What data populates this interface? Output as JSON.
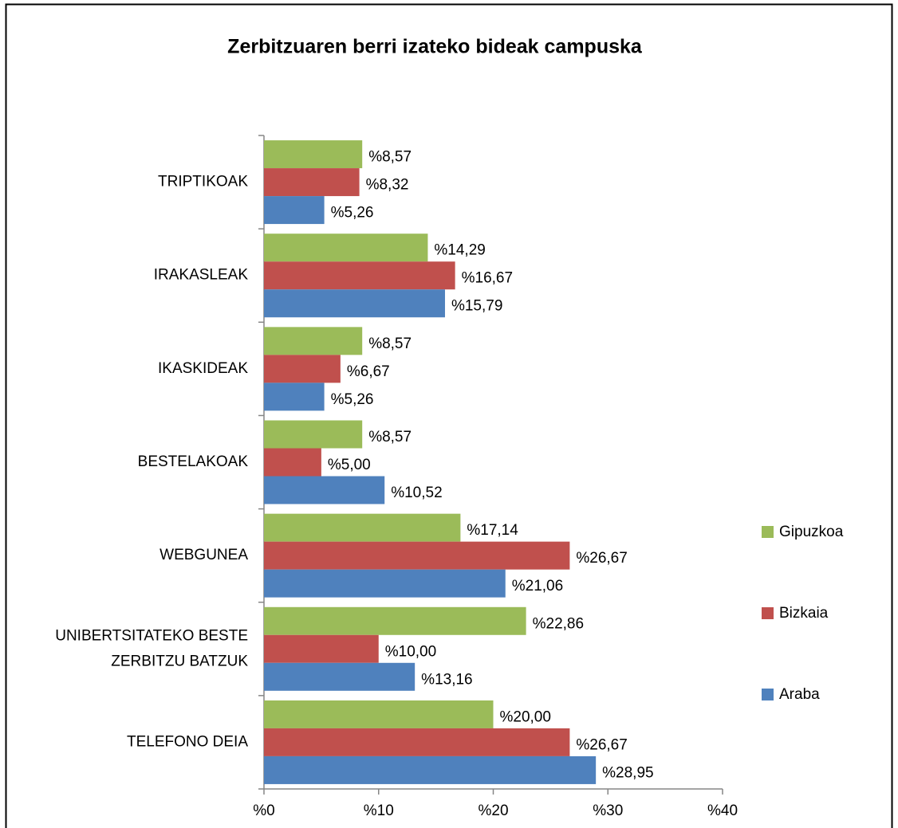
{
  "chart_data": {
    "type": "hbar",
    "title": "Zerbitzuaren berri izateko bideak campuska",
    "categories": [
      "TRIPTIKOAK",
      "IRAKASLEAK",
      "IKASKIDEAK",
      "BESTELAKOAK",
      "WEBGUNEA",
      "UNIBERTSITATEKO BESTE ZERBITZU BATZUK",
      "TELEFONO DEIA"
    ],
    "series": [
      {
        "name": "Gipuzkoa",
        "color": "#9bbb59",
        "values": [
          8.57,
          14.29,
          8.57,
          8.57,
          17.14,
          22.86,
          20.0
        ],
        "value_labels": [
          "%8,57",
          "%14,29",
          "%8,57",
          "%8,57",
          "%17,14",
          "%22,86",
          "%20,00"
        ]
      },
      {
        "name": "Bizkaia",
        "color": "#c0504d",
        "values": [
          8.32,
          16.67,
          6.67,
          5.0,
          26.67,
          10.0,
          26.67
        ],
        "value_labels": [
          "%8,32",
          "%16,67",
          "%6,67",
          "%5,00",
          "%26,67",
          "%10,00",
          "%26,67"
        ]
      },
      {
        "name": "Araba",
        "color": "#4f81bd",
        "values": [
          5.26,
          15.79,
          5.26,
          10.52,
          21.06,
          13.16,
          28.95
        ],
        "value_labels": [
          "%5,26",
          "%15,79",
          "%5,26",
          "%10,52",
          "%21,06",
          "%13,16",
          "%28,95"
        ]
      }
    ],
    "xlim": [
      0,
      40
    ],
    "xticks": [
      {
        "value": 0,
        "label": "%0"
      },
      {
        "value": 10,
        "label": "%10"
      },
      {
        "value": 20,
        "label": "%20"
      },
      {
        "value": 30,
        "label": "%30"
      },
      {
        "value": 40,
        "label": "%40"
      }
    ],
    "legend": "right"
  }
}
